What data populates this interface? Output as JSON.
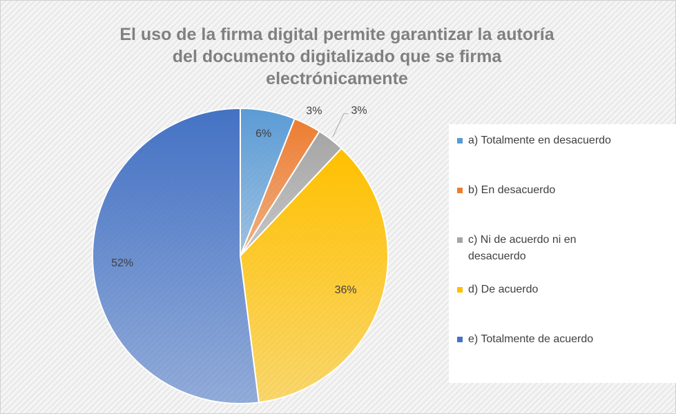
{
  "chart_data": {
    "type": "pie",
    "title": [
      "El uso de la firma digital permite garantizar la autoría",
      "del documento digitalizado que se firma",
      "electrónicamente"
    ],
    "categories": [
      "a) Totalmente en desacuerdo",
      "b) En desacuerdo",
      "c) Ni de acuerdo ni en desacuerdo",
      "d) De acuerdo",
      "e) Totalmente de acuerdo"
    ],
    "values": [
      6,
      3,
      3,
      36,
      52
    ],
    "value_labels": [
      "6%",
      "3%",
      "3%",
      "36%",
      "52%"
    ],
    "colors": [
      "#5b9bd5",
      "#ed7d31",
      "#a5a5a5",
      "#ffc000",
      "#4472c4"
    ],
    "legend": "right"
  }
}
